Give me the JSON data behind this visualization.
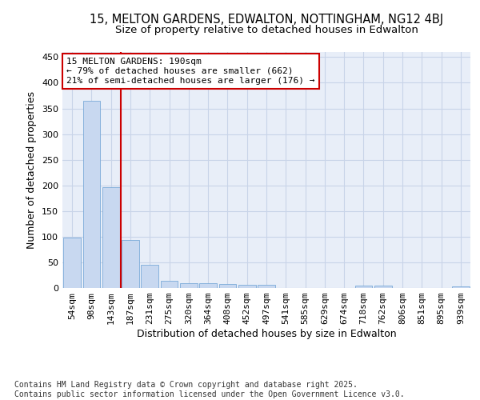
{
  "title_line1": "15, MELTON GARDENS, EDWALTON, NOTTINGHAM, NG12 4BJ",
  "title_line2": "Size of property relative to detached houses in Edwalton",
  "xlabel": "Distribution of detached houses by size in Edwalton",
  "ylabel": "Number of detached properties",
  "categories": [
    "54sqm",
    "98sqm",
    "143sqm",
    "187sqm",
    "231sqm",
    "275sqm",
    "320sqm",
    "364sqm",
    "408sqm",
    "452sqm",
    "497sqm",
    "541sqm",
    "585sqm",
    "629sqm",
    "674sqm",
    "718sqm",
    "762sqm",
    "806sqm",
    "851sqm",
    "895sqm",
    "939sqm"
  ],
  "values": [
    98,
    365,
    196,
    93,
    45,
    14,
    10,
    10,
    8,
    6,
    6,
    0,
    0,
    0,
    0,
    4,
    4,
    0,
    0,
    0,
    3
  ],
  "bar_color": "#c8d8f0",
  "bar_edge_color": "#7aaad8",
  "vline_color": "#cc0000",
  "annotation_text_line1": "15 MELTON GARDENS: 190sqm",
  "annotation_text_line2": "← 79% of detached houses are smaller (662)",
  "annotation_text_line3": "21% of semi-detached houses are larger (176) →",
  "annotation_box_color": "#cc0000",
  "ylim": [
    0,
    460
  ],
  "yticks": [
    0,
    50,
    100,
    150,
    200,
    250,
    300,
    350,
    400,
    450
  ],
  "grid_color": "#c8d4e8",
  "bg_color": "#e8eef8",
  "footer_text": "Contains HM Land Registry data © Crown copyright and database right 2025.\nContains public sector information licensed under the Open Government Licence v3.0.",
  "title_fontsize": 10.5,
  "subtitle_fontsize": 9.5,
  "ylabel_fontsize": 9,
  "xlabel_fontsize": 9,
  "tick_fontsize": 8,
  "annotation_fontsize": 8,
  "footer_fontsize": 7
}
